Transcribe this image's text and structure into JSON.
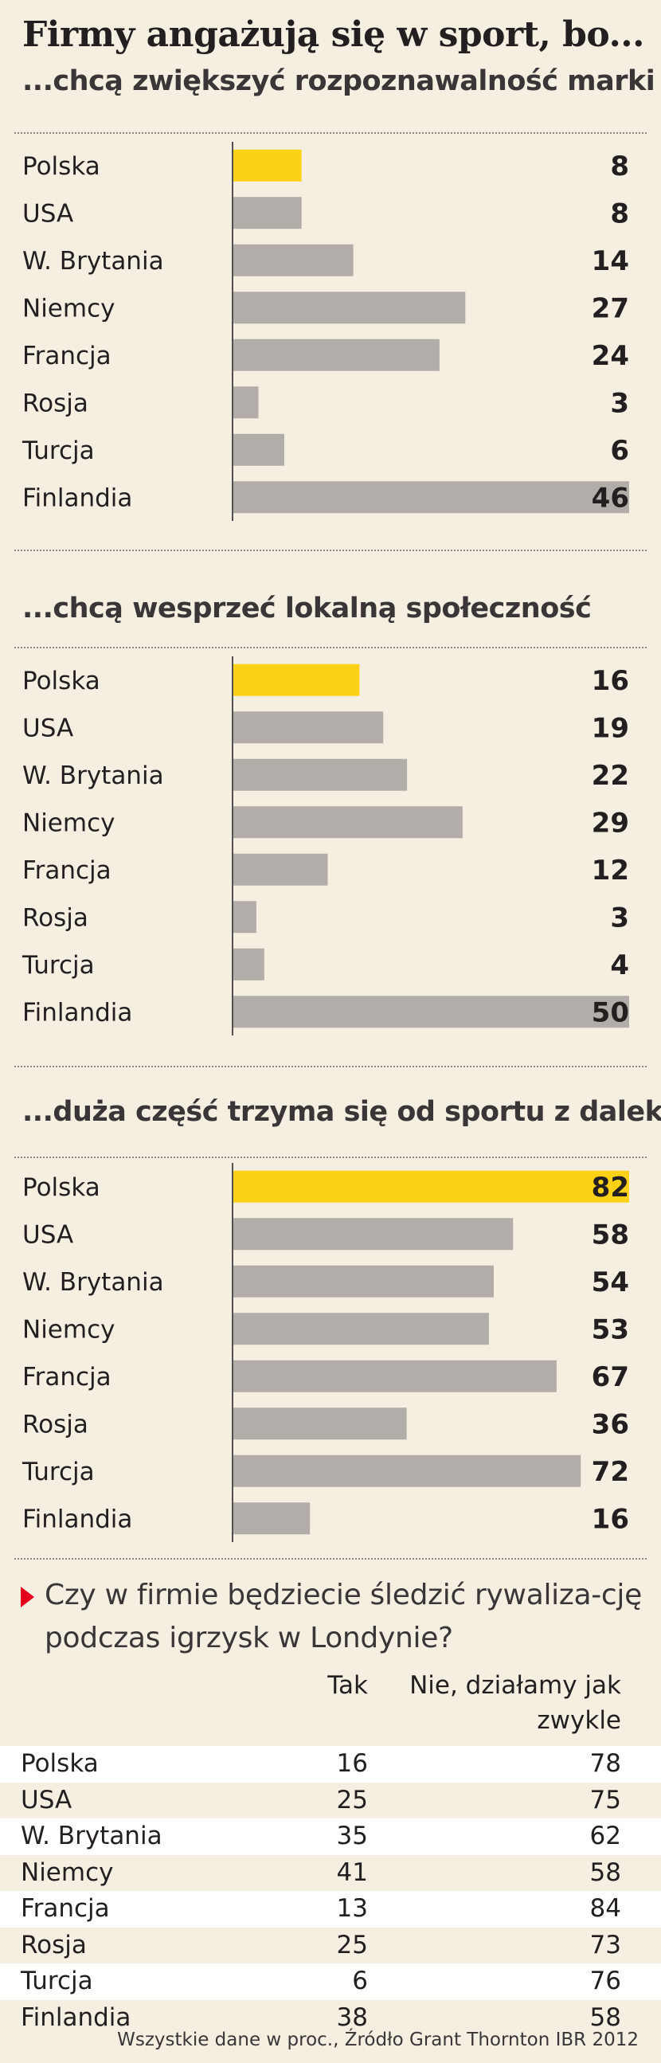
{
  "title": "Firmy angażują się w sport, bo...",
  "colors": {
    "highlight": "#fcd116",
    "bar": "#b2ada8",
    "axis": "#555050",
    "marker": "#e2001a"
  },
  "chart_data": [
    {
      "type": "bar",
      "title": "...chcą zwiększyć rozpoznawalność marki",
      "categories": [
        "Polska",
        "USA",
        "W. Brytania",
        "Niemcy",
        "Francja",
        "Rosja",
        "Turcja",
        "Finlandia"
      ],
      "values": [
        8,
        8,
        14,
        27,
        24,
        3,
        6,
        46
      ],
      "highlight": "Polska",
      "xlim": [
        0,
        46
      ]
    },
    {
      "type": "bar",
      "title": "...chcą wesprzeć lokalną społeczność",
      "categories": [
        "Polska",
        "USA",
        "W. Brytania",
        "Niemcy",
        "Francja",
        "Rosja",
        "Turcja",
        "Finlandia"
      ],
      "values": [
        16,
        19,
        22,
        29,
        12,
        3,
        4,
        50
      ],
      "highlight": "Polska",
      "xlim": [
        0,
        50
      ]
    },
    {
      "type": "bar",
      "title": "...duża część trzyma się od sportu z daleka",
      "categories": [
        "Polska",
        "USA",
        "W. Brytania",
        "Niemcy",
        "Francja",
        "Rosja",
        "Turcja",
        "Finlandia"
      ],
      "values": [
        82,
        58,
        54,
        53,
        67,
        36,
        72,
        16
      ],
      "highlight": "Polska",
      "xlim": [
        0,
        82
      ]
    },
    {
      "type": "table",
      "title": "Czy w firmie będziecie śledzić rywalizację podczas igrzysk w Londynie?",
      "columns": [
        "Tak",
        "Nie, działamy jak zwykle"
      ],
      "rows": [
        {
          "country": "Polska",
          "tak": "16",
          "nie": "78"
        },
        {
          "country": "USA",
          "tak": "25",
          "nie": "75"
        },
        {
          "country": "W. Brytania",
          "tak": "35",
          "nie": "62"
        },
        {
          "country": "Niemcy",
          "tak": "41",
          "nie": "58"
        },
        {
          "country": "Francja",
          "tak": "13",
          "nie": "84"
        },
        {
          "country": "Rosja",
          "tak": "25",
          "nie": "73"
        },
        {
          "country": "Turcja",
          "tak": "6",
          "nie": "76"
        },
        {
          "country": "Finlandia",
          "tak": "38",
          "nie": "58"
        }
      ]
    }
  ],
  "table": {
    "question": "Czy w firmie będziecie śledzić rywaliza-cję podczas igrzysk w Londynie?",
    "col_tak": "Tak",
    "col_nie": "Nie, działamy jak zwykle",
    "rows": [
      {
        "country": "Polska",
        "tak": "16",
        "nie": "78"
      },
      {
        "country": "USA",
        "tak": "25",
        "nie": "75"
      },
      {
        "country": "W. Brytania",
        "tak": "35",
        "nie": "62"
      },
      {
        "country": "Niemcy",
        "tak": "41",
        "nie": "58"
      },
      {
        "country": "Francja",
        "tak": "13",
        "nie": "84"
      },
      {
        "country": "Rosja",
        "tak": "25",
        "nie": "73"
      },
      {
        "country": "Turcja",
        "tak": "6",
        "nie": "76"
      },
      {
        "country": "Finlandia",
        "tak": "38",
        "nie": "58"
      }
    ]
  },
  "footnote": "Wszystkie dane w proc., Źródło Grant Thornton IBR 2012"
}
